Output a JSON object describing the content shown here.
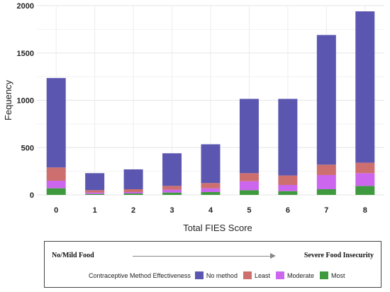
{
  "chart_data": {
    "type": "bar",
    "stacked": true,
    "title": "",
    "xlabel": "Total FIES Score",
    "ylabel": "Fequency",
    "ylim": [
      0,
      2000
    ],
    "yticks": [
      0,
      500,
      1000,
      1500,
      2000
    ],
    "grid": true,
    "categories": [
      "0",
      "1",
      "2",
      "3",
      "4",
      "5",
      "6",
      "7",
      "8"
    ],
    "series": [
      {
        "name": "Most",
        "color": "#3f9a3f",
        "values": [
          70,
          10,
          15,
          25,
          30,
          50,
          40,
          60,
          95
        ]
      },
      {
        "name": "Moderate",
        "color": "#cc66ee",
        "values": [
          80,
          15,
          15,
          30,
          40,
          95,
          65,
          150,
          135
        ]
      },
      {
        "name": "Least",
        "color": "#cd6f6f",
        "values": [
          140,
          25,
          30,
          40,
          55,
          85,
          100,
          110,
          110
        ]
      },
      {
        "name": "No method",
        "color": "#5b56b0",
        "values": [
          945,
          180,
          210,
          345,
          410,
          785,
          810,
          1370,
          1600
        ]
      }
    ],
    "legend_title": "Contraceptive Method Effectiveness",
    "legend_order": [
      "No method",
      "Least",
      "Moderate",
      "Most"
    ],
    "legend_position": "bottom"
  },
  "annotation": {
    "left": "No/Mild Food",
    "right": "Severe Food Insecurity"
  }
}
